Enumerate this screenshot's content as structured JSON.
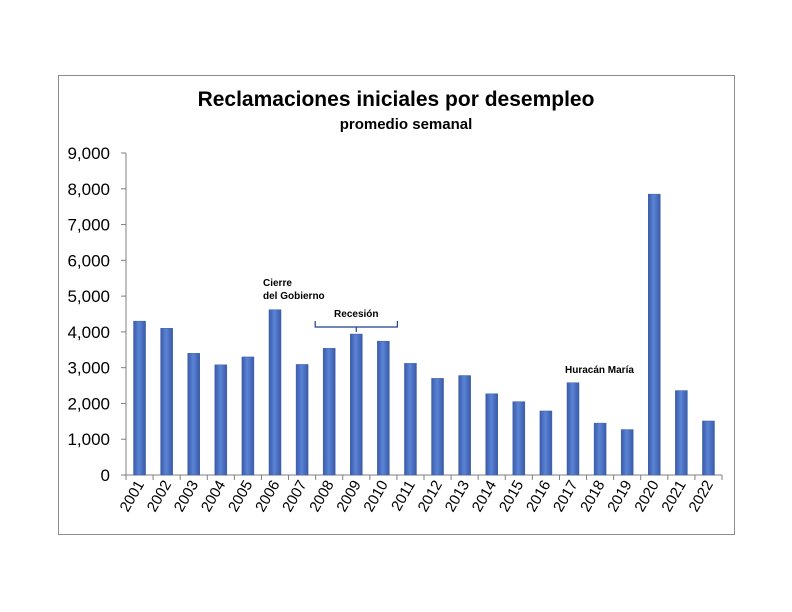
{
  "chart_data": {
    "type": "bar",
    "title": "Reclamaciones iniciales por desempleo",
    "subtitle": "promedio semanal",
    "xlabel": "",
    "ylabel": "",
    "ylim": [
      0,
      9000
    ],
    "ytick_labels": [
      "0",
      "1,000",
      "2,000",
      "3,000",
      "4,000",
      "5,000",
      "6,000",
      "7,000",
      "8,000",
      "9,000"
    ],
    "categories": [
      "2001",
      "2002",
      "2003",
      "2004",
      "2005",
      "2006",
      "2007",
      "2008",
      "2009",
      "2010",
      "2011",
      "2012",
      "2013",
      "2014",
      "2015",
      "2016",
      "2017",
      "2018",
      "2019",
      "2020",
      "2021",
      "2022"
    ],
    "values": [
      4300,
      4100,
      3400,
      3080,
      3300,
      4620,
      3090,
      3540,
      3940,
      3740,
      3120,
      2700,
      2780,
      2270,
      2050,
      1790,
      2580,
      1450,
      1270,
      7850,
      2360,
      1510
    ],
    "grid": false,
    "legend": "none",
    "bar_color": "#4a6fc2",
    "annotations": [
      {
        "label": "Cierre del Gobierno",
        "lines": [
          "Cierre",
          "del Gobierno"
        ],
        "category": "2006"
      },
      {
        "label": "Recesión",
        "span": [
          "2008",
          "2010"
        ]
      },
      {
        "label": "Huracán María",
        "category": "2017"
      }
    ]
  }
}
